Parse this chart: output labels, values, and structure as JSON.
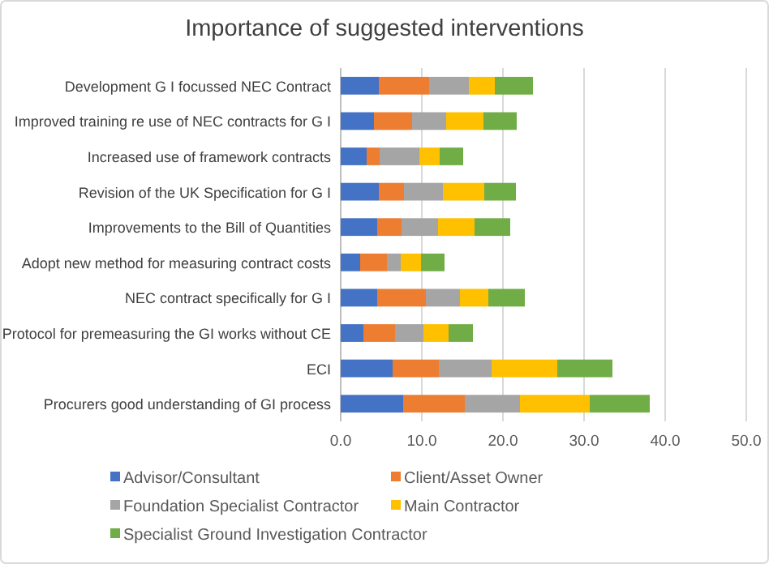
{
  "chart_data": {
    "type": "bar",
    "orientation": "horizontal",
    "stacked": true,
    "title": "Importance of suggested interventions",
    "categories": [
      "Development G I focussed NEC Contract",
      "Improved training re use of NEC contracts for G I",
      "Increased use of framework contracts",
      "Revision of the UK Specification for G I",
      "Improvements to the Bill of Quantities",
      "Adopt new method for measuring contract costs",
      "NEC contract specifically for G I",
      "Protocol for premeasuring the GI works without CE",
      "ECI",
      "Procurers good understanding of GI process"
    ],
    "series": [
      {
        "name": "Advisor/Consultant",
        "color": "#4472c4",
        "values": [
          4.7,
          4.1,
          3.2,
          4.7,
          4.5,
          2.4,
          4.5,
          2.8,
          6.4,
          7.7
        ]
      },
      {
        "name": "Client/Asset Owner",
        "color": "#ed7d31",
        "values": [
          6.2,
          4.7,
          1.6,
          3.1,
          3.0,
          3.3,
          6.0,
          3.9,
          5.7,
          7.6
        ]
      },
      {
        "name": "Foundation Specialist Contractor",
        "color": "#a5a5a5",
        "values": [
          4.9,
          4.2,
          4.9,
          4.8,
          4.5,
          1.7,
          4.2,
          3.5,
          6.5,
          6.8
        ]
      },
      {
        "name": "Main Contractor",
        "color": "#ffc000",
        "values": [
          3.2,
          4.6,
          2.5,
          5.1,
          4.5,
          2.5,
          3.5,
          3.1,
          8.1,
          8.6
        ]
      },
      {
        "name": "Specialist Ground Investigation Contractor",
        "color": "#70ad47",
        "values": [
          4.7,
          4.1,
          2.9,
          3.9,
          4.4,
          2.9,
          4.5,
          3.0,
          6.8,
          7.4
        ]
      }
    ],
    "xlim": [
      0,
      50
    ],
    "xticks": [
      {
        "value": 0,
        "label": "0.0"
      },
      {
        "value": 10,
        "label": "10.0"
      },
      {
        "value": 20,
        "label": "20.0"
      },
      {
        "value": 30,
        "label": "30.0"
      },
      {
        "value": 40,
        "label": "40.0"
      },
      {
        "value": 50,
        "label": "50.0"
      }
    ],
    "grid": "x",
    "legend": "bottom"
  }
}
